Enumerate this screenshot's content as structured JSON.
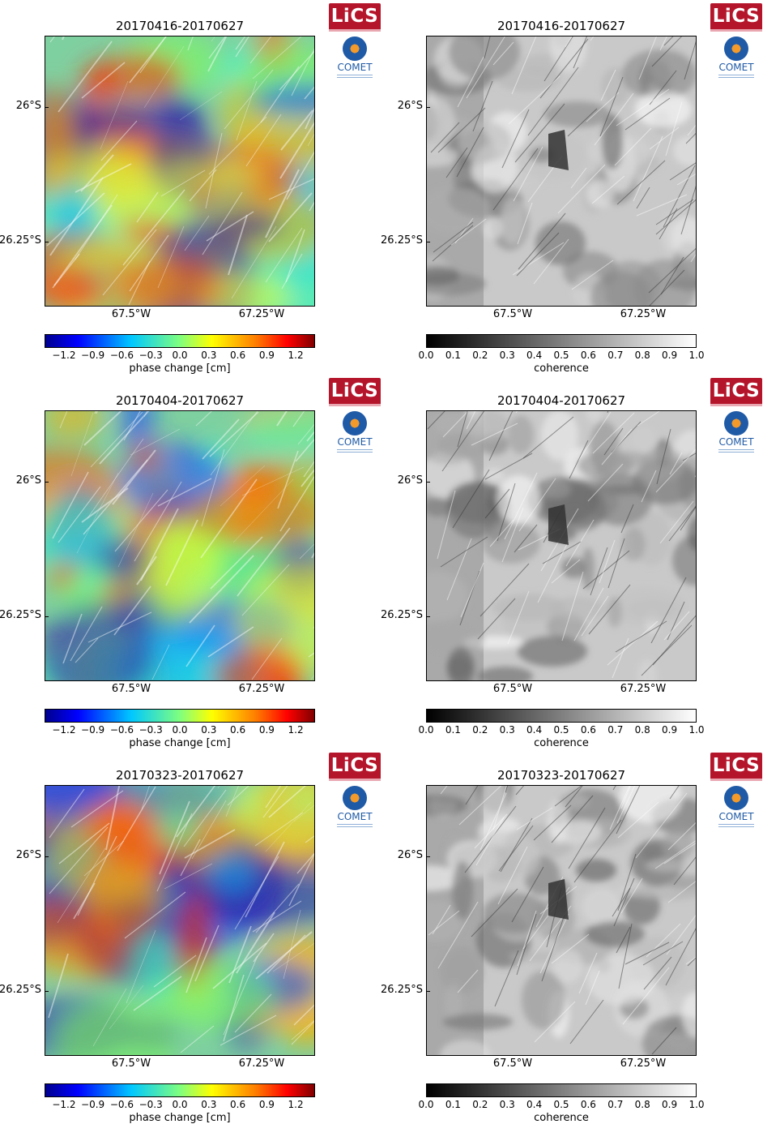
{
  "logos": {
    "lics_text": "LiCS",
    "comet_text": "COMET"
  },
  "panels": [
    {
      "id": "p1",
      "kind": "phase",
      "title": "20170416-20170627"
    },
    {
      "id": "c1",
      "kind": "coherence",
      "title": "20170416-20170627"
    },
    {
      "id": "p2",
      "kind": "phase",
      "title": "20170404-20170627"
    },
    {
      "id": "c2",
      "kind": "coherence",
      "title": "20170404-20170627"
    },
    {
      "id": "p3",
      "kind": "phase",
      "title": "20170323-20170627"
    },
    {
      "id": "c3",
      "kind": "coherence",
      "title": "20170323-20170627"
    }
  ],
  "axes": {
    "y_ticks": [
      "26°S",
      "26.25°S"
    ],
    "x_ticks": [
      "67.5°W",
      "67.25°W"
    ]
  },
  "colorbars": {
    "phase": {
      "label": "phase change [cm]",
      "ticks": [
        "−1.2",
        "−0.9",
        "−0.6",
        "−0.3",
        "0.0",
        "0.3",
        "0.6",
        "0.9",
        "1.2"
      ],
      "range": [
        -1.4,
        1.4
      ],
      "colormap": [
        "#00008f",
        "#0000ff",
        "#00c8ff",
        "#7fff7f",
        "#ffff00",
        "#ff7f00",
        "#ff0000",
        "#800000"
      ]
    },
    "coherence": {
      "label": "coherence",
      "ticks": [
        "0.0",
        "0.1",
        "0.2",
        "0.3",
        "0.4",
        "0.5",
        "0.6",
        "0.7",
        "0.8",
        "0.9",
        "1.0"
      ],
      "range": [
        0.0,
        1.0
      ],
      "colormap": [
        "#000000",
        "#ffffff"
      ]
    }
  }
}
